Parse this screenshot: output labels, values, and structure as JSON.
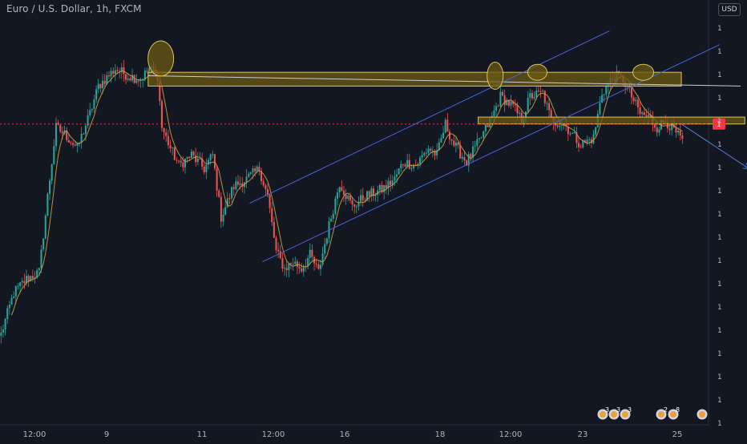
{
  "header": {
    "symbol_title": "Euro / U.S. Dollar, 1h, FXCM",
    "currency": "USD"
  },
  "price_axis": {
    "tick_labels": [
      "1",
      "1",
      "1",
      "1",
      "1",
      "1",
      "1",
      "1",
      "1",
      "1",
      "1",
      "1",
      "1",
      "1",
      "1",
      "1",
      "1",
      "1"
    ],
    "current_price_label": "1"
  },
  "time_axis": {
    "tick_labels": [
      "12:00",
      "9",
      "11",
      "12:00",
      "16",
      "18",
      "12:00",
      "23",
      "25"
    ]
  },
  "events": [
    {
      "icon": "earnings-flag-icon",
      "label": "3"
    },
    {
      "icon": "earnings-flag-icon",
      "label": "3"
    },
    {
      "icon": "earnings-flag-icon",
      "label": "3"
    },
    {
      "icon": "earnings-flag-icon",
      "label": "2"
    },
    {
      "icon": "earnings-flag-icon",
      "label": "8"
    },
    {
      "icon": "earnings-flag-icon",
      "label": ""
    }
  ],
  "colors": {
    "background": "#131722",
    "bull": "#26a69a",
    "bear": "#ef5350",
    "ma": "#c8a045",
    "zone_fill": "#6b5a14",
    "zone_stroke": "#e0c45c",
    "channel": "#4a64d8",
    "current_price": "#f23645"
  },
  "chart_data": {
    "type": "candlestick",
    "title": "Euro / U.S. Dollar, 1h, FXCM",
    "xlabel": "",
    "ylabel": "",
    "x_ticks": [
      "12:00",
      "9",
      "11",
      "12:00",
      "16",
      "18",
      "12:00",
      "23",
      "25"
    ],
    "ylim": [
      0,
      100
    ],
    "grid": false,
    "moving_average": true,
    "close_path": [
      [
        0,
        10
      ],
      [
        6,
        22
      ],
      [
        12,
        26
      ],
      [
        18,
        28
      ],
      [
        22,
        50
      ],
      [
        26,
        70
      ],
      [
        30,
        68
      ],
      [
        36,
        64
      ],
      [
        42,
        74
      ],
      [
        46,
        82
      ],
      [
        54,
        87
      ],
      [
        60,
        85
      ],
      [
        66,
        84
      ],
      [
        70,
        87
      ],
      [
        74,
        85
      ],
      [
        76,
        70
      ],
      [
        80,
        64
      ],
      [
        84,
        59
      ],
      [
        90,
        62
      ],
      [
        96,
        58
      ],
      [
        100,
        62
      ],
      [
        104,
        44
      ],
      [
        110,
        53
      ],
      [
        116,
        55
      ],
      [
        122,
        58
      ],
      [
        126,
        50
      ],
      [
        130,
        34
      ],
      [
        134,
        29
      ],
      [
        138,
        31
      ],
      [
        142,
        29
      ],
      [
        146,
        33
      ],
      [
        150,
        28
      ],
      [
        154,
        39
      ],
      [
        160,
        54
      ],
      [
        166,
        47
      ],
      [
        172,
        50
      ],
      [
        176,
        51
      ],
      [
        180,
        52
      ],
      [
        186,
        55
      ],
      [
        190,
        60
      ],
      [
        196,
        59
      ],
      [
        202,
        64
      ],
      [
        206,
        62
      ],
      [
        210,
        71
      ],
      [
        214,
        65
      ],
      [
        220,
        60
      ],
      [
        226,
        66
      ],
      [
        232,
        73
      ],
      [
        236,
        79
      ],
      [
        242,
        76
      ],
      [
        246,
        72
      ],
      [
        250,
        79
      ],
      [
        256,
        80
      ],
      [
        260,
        72
      ],
      [
        266,
        71
      ],
      [
        270,
        68
      ],
      [
        274,
        65
      ],
      [
        280,
        67
      ],
      [
        284,
        80
      ],
      [
        290,
        85
      ],
      [
        294,
        84
      ],
      [
        298,
        79
      ],
      [
        302,
        74
      ],
      [
        306,
        73
      ],
      [
        310,
        70
      ],
      [
        314,
        72
      ],
      [
        318,
        69
      ],
      [
        322,
        66
      ]
    ],
    "ma_period": 6,
    "current_price_level": 71,
    "annotations": {
      "horizontal_zones": [
        {
          "x_from": 70,
          "x_to": 322,
          "y_low": 82,
          "y_high": 86
        },
        {
          "x_from": 226,
          "x_to": 352,
          "y_low": 71,
          "y_high": 73
        }
      ],
      "trend_line": {
        "from": [
          70,
          85
        ],
        "to": [
          350,
          82
        ]
      },
      "ellipses": [
        {
          "x": 76,
          "y": 90
        },
        {
          "x": 234,
          "y": 85
        },
        {
          "x": 254,
          "y": 86
        },
        {
          "x": 304,
          "y": 86
        }
      ],
      "channel_lines": [
        {
          "from": [
            118,
            48
          ],
          "to": [
            288,
            98
          ]
        },
        {
          "from": [
            124,
            31
          ],
          "to": [
            340,
            94
          ]
        }
      ],
      "projection_arrow": {
        "from": [
          322,
          71
        ],
        "to": [
          354,
          58
        ]
      }
    }
  }
}
